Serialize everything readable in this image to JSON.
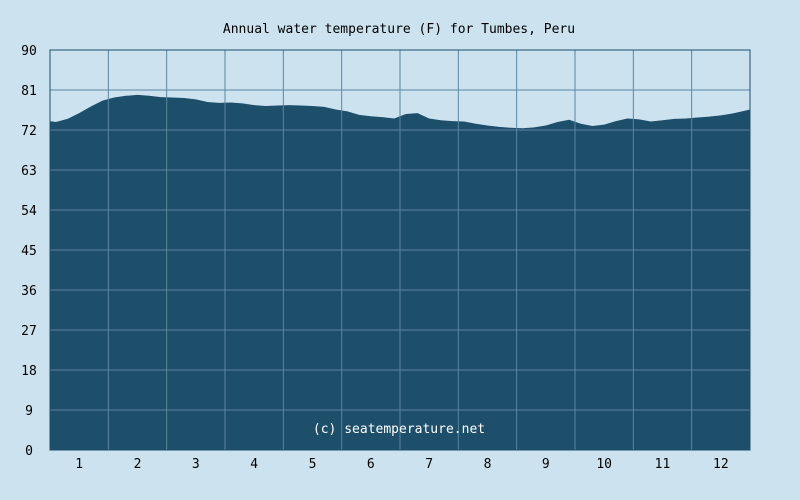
{
  "chart_data": {
    "type": "area",
    "title": "Annual water temperature (F) for Tumbes, Peru",
    "watermark": "(c) seatemperature.net",
    "xlabel": "",
    "ylabel": "",
    "xlim": [
      0.5,
      12.5
    ],
    "ylim": [
      0,
      90
    ],
    "x_ticks": [
      1,
      2,
      3,
      4,
      5,
      6,
      7,
      8,
      9,
      10,
      11,
      12
    ],
    "y_ticks": [
      0,
      9,
      18,
      27,
      36,
      45,
      54,
      63,
      72,
      81,
      90
    ],
    "grid": true,
    "colors": {
      "background": "#cce3ef",
      "fill": "#1d4f6b",
      "grid": "#5a86a0"
    },
    "series": [
      {
        "x": [
          0.5,
          0.6,
          0.8,
          1.0,
          1.2,
          1.4,
          1.6,
          1.8,
          2.0,
          2.2,
          2.4,
          2.6,
          2.8,
          3.0,
          3.2,
          3.4,
          3.6,
          3.8,
          4.0,
          4.2,
          4.4,
          4.6,
          4.8,
          5.0,
          5.2,
          5.4,
          5.6,
          5.8,
          6.0,
          6.2,
          6.4,
          6.6,
          6.8,
          7.0,
          7.2,
          7.4,
          7.6,
          7.8,
          8.0,
          8.2,
          8.4,
          8.6,
          8.8,
          9.0,
          9.2,
          9.4,
          9.6,
          9.8,
          10.0,
          10.2,
          10.4,
          10.6,
          10.8,
          11.0,
          11.2,
          11.4,
          11.6,
          11.8,
          12.0,
          12.2,
          12.4,
          12.5
        ],
        "values": [
          74.0,
          73.8,
          74.5,
          75.8,
          77.3,
          78.6,
          79.3,
          79.7,
          79.9,
          79.7,
          79.4,
          79.3,
          79.2,
          78.9,
          78.3,
          78.1,
          78.2,
          78.0,
          77.6,
          77.4,
          77.5,
          77.6,
          77.5,
          77.4,
          77.2,
          76.6,
          76.2,
          75.4,
          75.1,
          74.9,
          74.6,
          75.6,
          75.8,
          74.6,
          74.2,
          74.0,
          73.9,
          73.4,
          73.0,
          72.7,
          72.5,
          72.4,
          72.6,
          73.0,
          73.8,
          74.3,
          73.4,
          72.9,
          73.2,
          74.0,
          74.6,
          74.4,
          73.9,
          74.2,
          74.5,
          74.6,
          74.8,
          75.0,
          75.3,
          75.7,
          76.3,
          76.6
        ]
      }
    ]
  }
}
